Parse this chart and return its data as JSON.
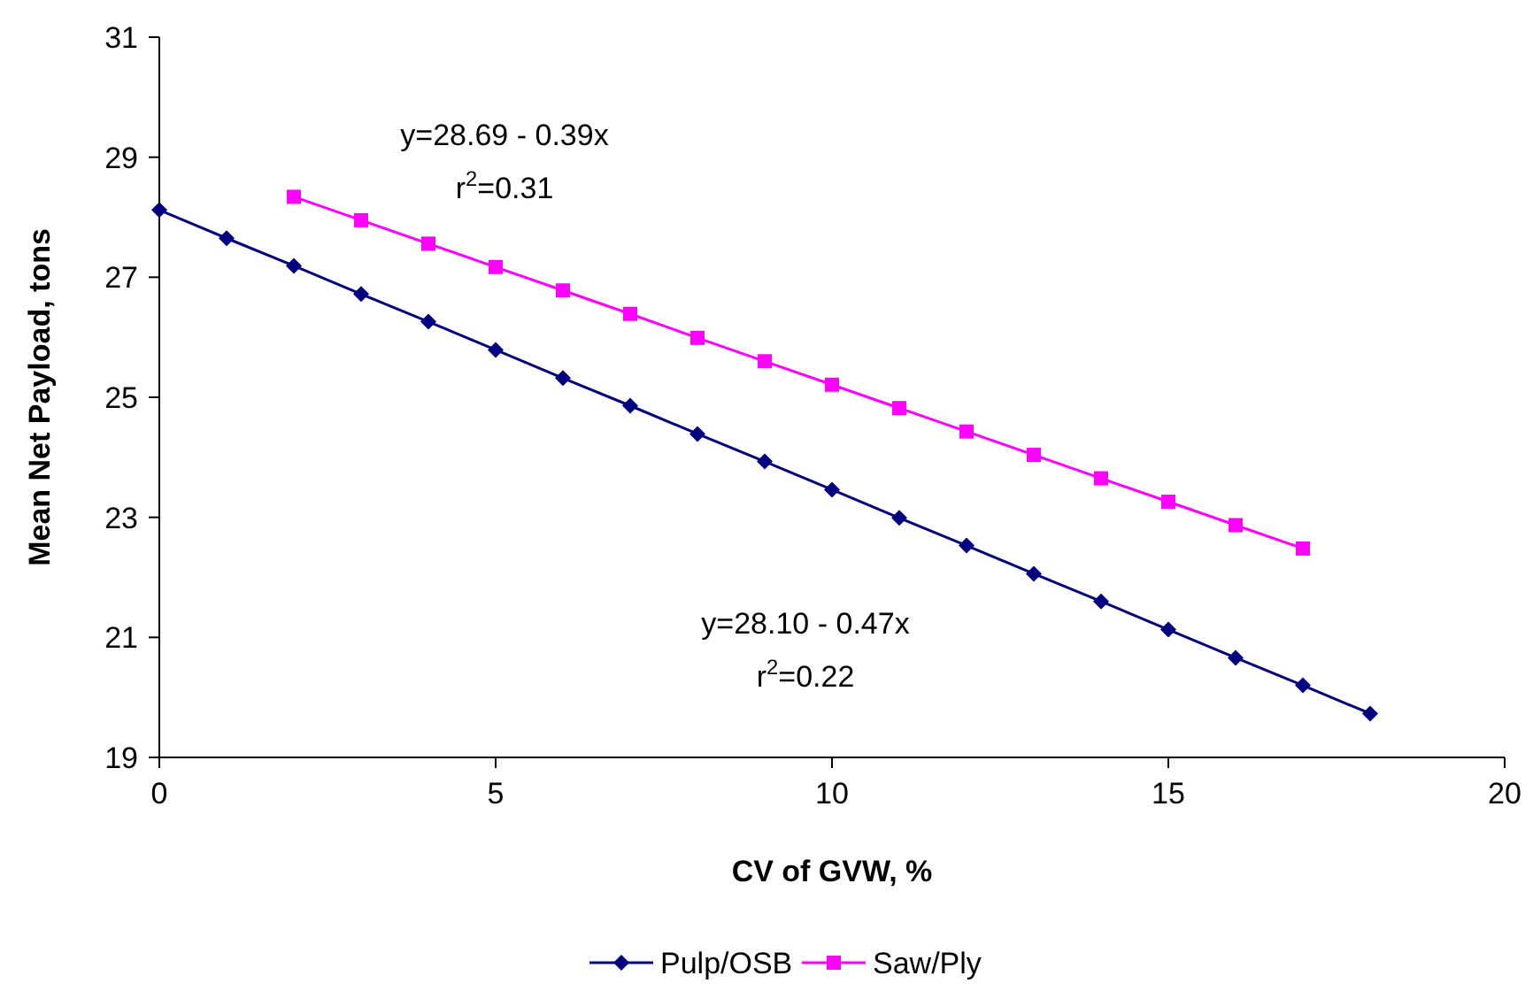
{
  "chart_data": {
    "type": "line",
    "xlabel": "CV of GVW, %",
    "ylabel": "Mean Net Payload, tons",
    "xlim": [
      0,
      20
    ],
    "xticks": [
      0,
      5,
      10,
      15,
      20
    ],
    "ylim": [
      19,
      31
    ],
    "yticks": [
      19,
      21,
      23,
      25,
      27,
      29,
      31
    ],
    "grid": false,
    "legend": "bottom",
    "series": [
      {
        "name": "Pulp/OSB",
        "color": "#000080",
        "marker": "diamond",
        "x": [
          0,
          1,
          2,
          3,
          4,
          5,
          6,
          7,
          8,
          9,
          10,
          11,
          12,
          13,
          14,
          15,
          16,
          17,
          18
        ],
        "values": [
          28.12,
          27.65,
          27.19,
          26.72,
          26.26,
          25.79,
          25.32,
          24.86,
          24.39,
          23.93,
          23.46,
          22.99,
          22.53,
          22.06,
          21.6,
          21.13,
          20.66,
          20.2,
          19.73
        ]
      },
      {
        "name": "Saw/Ply",
        "color": "#ff00ff",
        "marker": "square",
        "x": [
          2,
          3,
          4,
          5,
          6,
          7,
          8,
          9,
          10,
          11,
          12,
          13,
          14,
          15,
          16,
          17
        ],
        "values": [
          28.34,
          27.95,
          27.56,
          27.17,
          26.78,
          26.39,
          25.99,
          25.6,
          25.21,
          24.82,
          24.43,
          24.04,
          23.65,
          23.26,
          22.87,
          22.48
        ]
      }
    ],
    "annotations": [
      "y=28.69 - 0.39x\nr$^{2}$=0.31",
      "y=28.10 - 0.47x\nr$^{2}$=0.22"
    ]
  }
}
